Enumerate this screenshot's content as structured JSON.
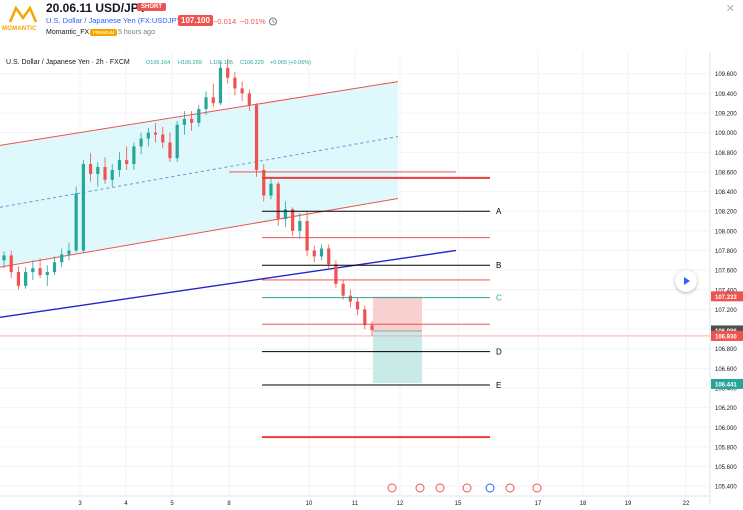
{
  "header": {
    "title": "20.06.11 USD/JPY",
    "direction_badge": "SHORT",
    "instrument": "U.S. Dollar / Japanese Yen (FX:USDJPY)",
    "last_price": "107.100",
    "change": "−0.014",
    "change_pct": "−0.01%",
    "author": "Momantic_FX",
    "author_badge": "PREMIUM",
    "published": "5 hours ago",
    "logo_text": "MOMANTIC"
  },
  "legend": {
    "symbol": "U.S. Dollar / Japanese Yen · 2h · FXCM",
    "open": "O106.164",
    "high": "H106.269",
    "low": "L106.105",
    "close": "C106.229",
    "change": "+0.065 (+0.06%)"
  },
  "chart_data": {
    "type": "candlestick",
    "title": "U.S. Dollar / Japanese Yen · 2h · FXCM",
    "x_tick_labels": [
      "3",
      "4",
      "5",
      "8",
      "10",
      "11",
      "12",
      "15",
      "17",
      "18",
      "19",
      "22"
    ],
    "y_tick_labels": [
      "109.600",
      "109.400",
      "109.200",
      "109.000",
      "108.800",
      "108.600",
      "108.400",
      "108.200",
      "108.000",
      "107.800",
      "107.600",
      "107.400",
      "107.200",
      "107.000",
      "106.800",
      "106.600",
      "106.400",
      "106.200",
      "106.000",
      "105.800",
      "105.600",
      "105.400"
    ],
    "ylim": [
      105.3,
      109.75
    ],
    "price_tags": [
      {
        "label": "107.333",
        "value": 107.333,
        "color": "#ef5350"
      },
      {
        "label": "106.986",
        "value": 106.986,
        "color": "#505050"
      },
      {
        "label": "106.930",
        "value": 106.93,
        "color": "#ef5350"
      },
      {
        "label": "106.441",
        "value": 106.441,
        "color": "#26a69a"
      }
    ],
    "levels": [
      {
        "label": "A",
        "value": 108.2,
        "color": "#000000"
      },
      {
        "label": "B",
        "value": 107.65,
        "color": "#000000"
      },
      {
        "label": "C",
        "value": 107.32,
        "color": "#26a69a"
      },
      {
        "label": "D",
        "value": 106.77,
        "color": "#000000"
      },
      {
        "label": "E",
        "value": 106.43,
        "color": "#000000"
      }
    ],
    "red_levels": [
      108.6,
      108.54,
      107.93,
      107.5,
      107.05,
      105.9
    ],
    "channel": {
      "upper": [
        108.87,
        109.52
      ],
      "mid": [
        108.24,
        108.96
      ],
      "lower": [
        107.63,
        108.33
      ],
      "color": "#ef5350",
      "fill": "#d9f7fb"
    },
    "trendline": {
      "values": [
        107.12,
        107.8
      ],
      "color": "#2424c8"
    },
    "position": {
      "entry": 106.98,
      "stop": 107.33,
      "target": 106.45,
      "stop_fill": "#f9d0d0",
      "target_fill": "#c8ebe8"
    },
    "candles": [
      [
        107.7,
        107.79,
        107.62,
        107.75
      ],
      [
        107.75,
        107.8,
        107.52,
        107.58
      ],
      [
        107.58,
        107.64,
        107.4,
        107.44
      ],
      [
        107.44,
        107.63,
        107.41,
        107.58
      ],
      [
        107.58,
        107.7,
        107.5,
        107.62
      ],
      [
        107.62,
        107.72,
        107.52,
        107.55
      ],
      [
        107.55,
        107.65,
        107.44,
        107.58
      ],
      [
        107.58,
        107.74,
        107.55,
        107.68
      ],
      [
        107.68,
        107.82,
        107.63,
        107.76
      ],
      [
        107.76,
        107.88,
        107.7,
        107.8
      ],
      [
        107.8,
        108.45,
        107.78,
        108.38
      ],
      [
        107.8,
        108.72,
        107.78,
        108.68
      ],
      [
        108.68,
        108.79,
        108.5,
        108.58
      ],
      [
        108.58,
        108.7,
        108.45,
        108.65
      ],
      [
        108.65,
        108.75,
        108.48,
        108.52
      ],
      [
        108.52,
        108.68,
        108.45,
        108.62
      ],
      [
        108.62,
        108.8,
        108.55,
        108.72
      ],
      [
        108.72,
        108.86,
        108.62,
        108.68
      ],
      [
        108.68,
        108.9,
        108.62,
        108.86
      ],
      [
        108.86,
        109.0,
        108.78,
        108.94
      ],
      [
        108.94,
        109.05,
        108.86,
        109.0
      ],
      [
        109.0,
        109.1,
        108.9,
        108.98
      ],
      [
        108.98,
        109.06,
        108.84,
        108.9
      ],
      [
        108.9,
        109.0,
        108.7,
        108.74
      ],
      [
        108.74,
        109.12,
        108.7,
        109.08
      ],
      [
        109.08,
        109.22,
        108.98,
        109.14
      ],
      [
        109.14,
        109.22,
        109.02,
        109.1
      ],
      [
        109.1,
        109.28,
        109.06,
        109.24
      ],
      [
        109.24,
        109.42,
        109.18,
        109.36
      ],
      [
        109.36,
        109.5,
        109.26,
        109.3
      ],
      [
        109.3,
        109.72,
        109.28,
        109.66
      ],
      [
        109.66,
        109.75,
        109.5,
        109.56
      ],
      [
        109.56,
        109.62,
        109.38,
        109.45
      ],
      [
        109.45,
        109.52,
        109.32,
        109.4
      ],
      [
        109.4,
        109.44,
        109.22,
        109.28
      ],
      [
        109.28,
        109.3,
        108.55,
        108.62
      ],
      [
        108.62,
        108.68,
        108.3,
        108.36
      ],
      [
        108.36,
        108.55,
        108.32,
        108.48
      ],
      [
        108.48,
        108.5,
        108.05,
        108.12
      ],
      [
        108.12,
        108.3,
        108.04,
        108.22
      ],
      [
        108.22,
        108.24,
        107.95,
        108.0
      ],
      [
        108.0,
        108.18,
        107.92,
        108.1
      ],
      [
        108.1,
        108.2,
        107.74,
        107.8
      ],
      [
        107.8,
        107.85,
        107.68,
        107.74
      ],
      [
        107.74,
        107.86,
        107.7,
        107.82
      ],
      [
        107.82,
        107.86,
        107.62,
        107.66
      ],
      [
        107.66,
        107.7,
        107.42,
        107.46
      ],
      [
        107.46,
        107.5,
        107.3,
        107.34
      ],
      [
        107.34,
        107.4,
        107.22,
        107.28
      ],
      [
        107.28,
        107.32,
        107.14,
        107.2
      ],
      [
        107.2,
        107.24,
        107.0,
        107.04
      ],
      [
        107.04,
        107.08,
        106.93,
        106.99
      ]
    ]
  }
}
